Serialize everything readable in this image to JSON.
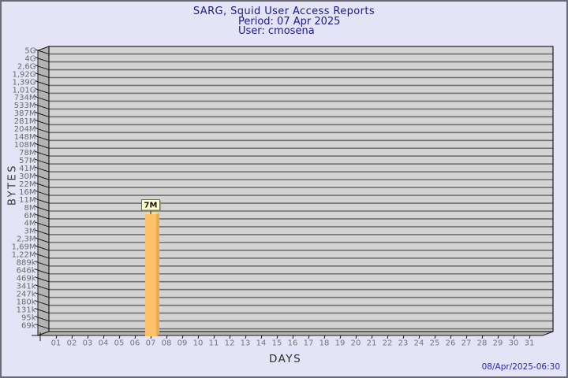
{
  "chart_data": {
    "type": "bar",
    "title": "SARG, Squid User Access Reports",
    "subtitle_period": "Period: 07 Apr 2025",
    "subtitle_user": "User: cmosena",
    "xlabel": "DAYS",
    "ylabel": "BYTES",
    "footer_timestamp": "08/Apr/2025-06:30",
    "x_tick_labels": [
      "01",
      "02",
      "03",
      "04",
      "05",
      "06",
      "07",
      "08",
      "09",
      "10",
      "11",
      "12",
      "13",
      "14",
      "15",
      "16",
      "17",
      "18",
      "19",
      "20",
      "21",
      "22",
      "23",
      "24",
      "25",
      "26",
      "27",
      "28",
      "29",
      "30",
      "31"
    ],
    "y_tick_labels": [
      "5G",
      "4G",
      "2,6G",
      "1,92G",
      "1,39G",
      "1,01G",
      "734M",
      "533M",
      "387M",
      "281M",
      "204M",
      "148M",
      "108M",
      "78M",
      "57M",
      "41M",
      "30M",
      "22M",
      "16M",
      "11M",
      "8M",
      "6M",
      "4M",
      "3M",
      "2,3M",
      "1,69M",
      "1,22M",
      "889k",
      "646k",
      "469k",
      "341k",
      "247k",
      "180k",
      "131k",
      "95k",
      "69k"
    ],
    "y_axis": {
      "scale": "log",
      "top_value": 5000000000,
      "bottom_value": 69000
    },
    "bars": [
      {
        "day": "07",
        "value_label": "7M",
        "value_bytes": 7340032
      }
    ],
    "grid": true,
    "legend": null,
    "colors": {
      "page_bg": "#E4E4F6",
      "border": "#6A6A72",
      "title": "#1A1A8C",
      "timestamp": "#2828AE",
      "wall": "#D3D3D3",
      "bevel": "#B3B3B3",
      "grid": "#6F6F6F",
      "outline": "#1A1A1A",
      "tick_label": "#6B6B6B",
      "day_label": "#757575",
      "axis_title": "#3A3A3A",
      "bar_front": "#FCC169",
      "bar_side": "#EDA94E",
      "bar_top": "#F0E38C",
      "value_box_bg": "#FFFFC9",
      "value_box_border": "#6F6F55",
      "value_box_shadow": "#8F8F75",
      "value_text": "#111111"
    }
  }
}
